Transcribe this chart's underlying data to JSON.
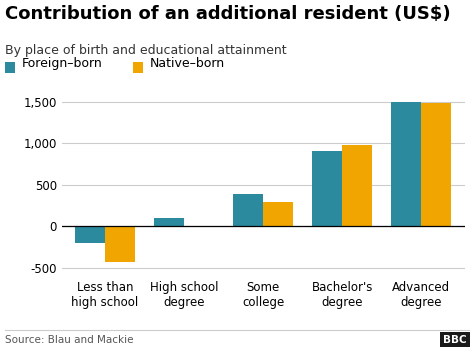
{
  "title": "Contribution of an additional resident (US$)",
  "subtitle": "By place of birth and educational attainment",
  "categories": [
    "Less than\nhigh school",
    "High school\ndegree",
    "Some\ncollege",
    "Bachelor's\ndegree",
    "Advanced\ndegree"
  ],
  "foreign_born": [
    -200,
    100,
    390,
    900,
    1500
  ],
  "native_born": [
    -430,
    5,
    290,
    975,
    1480
  ],
  "color_foreign": "#2b8a9e",
  "color_native": "#f0a500",
  "ylim": [
    -600,
    1700
  ],
  "yticks": [
    -500,
    0,
    500,
    1000,
    1500
  ],
  "ytick_labels": [
    "-500",
    "0",
    "500",
    "1,000",
    "1,500"
  ],
  "source": "Source: Blau and Mackie",
  "bbc_text": "BBC",
  "background_color": "#ffffff",
  "legend_foreign": "Foreign–born",
  "legend_native": "Native–born",
  "grid_color": "#cccccc",
  "title_fontsize": 13,
  "subtitle_fontsize": 9,
  "legend_fontsize": 9,
  "tick_fontsize": 8.5,
  "source_fontsize": 7.5
}
